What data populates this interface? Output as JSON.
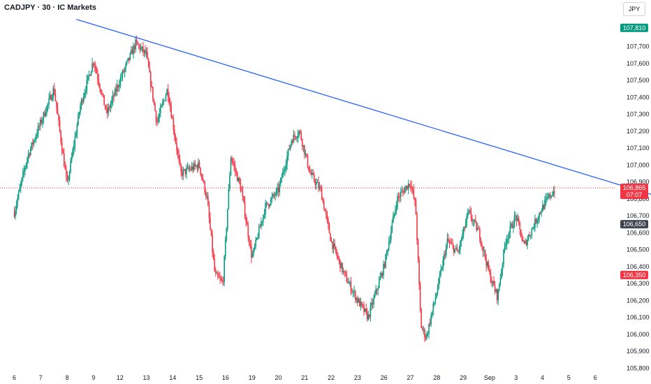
{
  "header": {
    "symbol_title": "CADJPY · 30 · IC Markets",
    "currency_button": "JPY"
  },
  "colors": {
    "up": "#089981",
    "down": "#f23645",
    "trendline": "#2962ff",
    "profit_zone": "#c8ebcc",
    "loss_zone": "#ffcdd2",
    "tag_target": "#089981",
    "tag_current": "#f23645",
    "tag_entry": "#434651",
    "tag_stop": "#f23645"
  },
  "chart_data": {
    "type": "candlestick",
    "x_labels": [
      "6",
      "7",
      "8",
      "9",
      "12",
      "13",
      "14",
      "15",
      "16",
      "19",
      "20",
      "21",
      "22",
      "23",
      "26",
      "27",
      "28",
      "29",
      "Sep",
      "3",
      "4",
      "5",
      "6"
    ],
    "y_ticks": [
      "107,700",
      "107,600",
      "107,500",
      "107,400",
      "107,300",
      "107,200",
      "107,100",
      "107,000",
      "106,900",
      "106,800",
      "106,700",
      "106,600",
      "106,500",
      "106,400",
      "106,300",
      "106,200",
      "106,100",
      "106,000",
      "105,900",
      "105,800"
    ],
    "ylim": [
      105.76,
      107.94
    ],
    "price_path": [
      [
        6,
        106.72
      ],
      [
        6.5,
        107.05
      ],
      [
        7,
        107.25
      ],
      [
        7.5,
        107.45
      ],
      [
        8,
        106.88
      ],
      [
        8.5,
        107.35
      ],
      [
        9,
        107.62
      ],
      [
        9.5,
        107.3
      ],
      [
        10,
        107.5
      ],
      [
        10.6,
        107.72
      ],
      [
        11,
        107.65
      ],
      [
        11.4,
        107.25
      ],
      [
        11.8,
        107.45
      ],
      [
        12.3,
        106.95
      ],
      [
        13,
        107.0
      ],
      [
        13.3,
        106.8
      ],
      [
        13.6,
        106.35
      ],
      [
        13.9,
        106.3
      ],
      [
        14.2,
        107.05
      ],
      [
        14.6,
        106.85
      ],
      [
        15,
        106.45
      ],
      [
        15.5,
        106.75
      ],
      [
        16,
        106.85
      ],
      [
        16.5,
        107.15
      ],
      [
        16.8,
        107.2
      ],
      [
        17.2,
        106.95
      ],
      [
        17.6,
        106.85
      ],
      [
        18,
        106.55
      ],
      [
        18.5,
        106.35
      ],
      [
        19,
        106.2
      ],
      [
        19.4,
        106.1
      ],
      [
        19.7,
        106.25
      ],
      [
        20,
        106.4
      ],
      [
        20.5,
        106.8
      ],
      [
        21,
        106.9
      ],
      [
        21.2,
        106.75
      ],
      [
        21.4,
        106.05
      ],
      [
        21.6,
        105.98
      ],
      [
        22,
        106.25
      ],
      [
        22.4,
        106.55
      ],
      [
        22.8,
        106.48
      ],
      [
        23.2,
        106.72
      ],
      [
        23.6,
        106.6
      ],
      [
        24,
        106.35
      ],
      [
        24.3,
        106.22
      ],
      [
        24.6,
        106.55
      ],
      [
        25,
        106.7
      ],
      [
        25.3,
        106.52
      ],
      [
        25.6,
        106.62
      ],
      [
        25.9,
        106.72
      ],
      [
        26.2,
        106.8
      ],
      [
        26.5,
        106.86
      ]
    ],
    "trendline": {
      "from": [
        2.35,
        107.86
      ],
      "to": [
        43.6,
        105.9
      ]
    },
    "current_price_line": 106.865,
    "position": {
      "target": 107.81,
      "entry": 106.65,
      "stop": 106.35,
      "start_index": 26.8,
      "end_index": 29.3
    },
    "price_tags": [
      {
        "label": "107,810",
        "value": 107.81,
        "kind": "target"
      },
      {
        "label": "106,865",
        "sublabel": "07:07",
        "value": 106.865,
        "kind": "current"
      },
      {
        "label": "106,650",
        "value": 106.65,
        "kind": "entry"
      },
      {
        "label": "106,350",
        "value": 106.35,
        "kind": "stop"
      }
    ]
  }
}
